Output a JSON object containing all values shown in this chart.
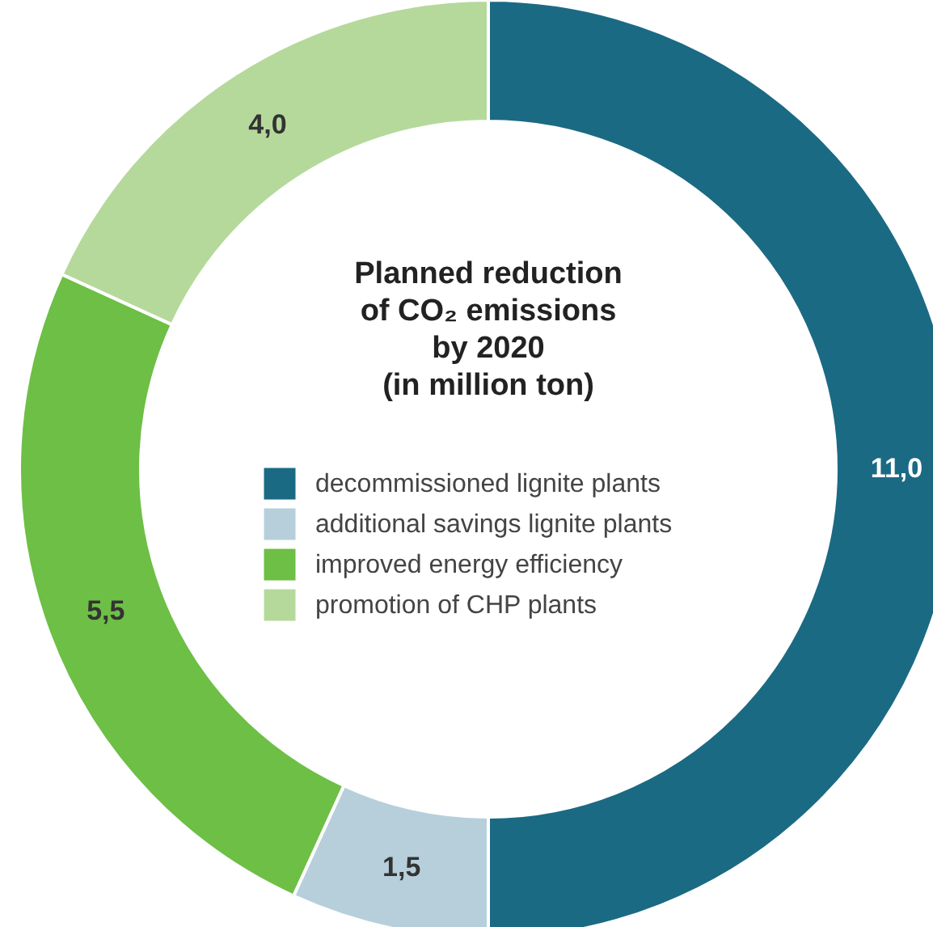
{
  "chart_data": {
    "type": "donut",
    "title": "Planned reduction\nof CO₂ emissions\nby 2020\n(in million ton)",
    "categories": [
      "decommissioned lignite plants",
      "additional savings lignite plants",
      "improved energy efficiency",
      "promotion of CHP plants"
    ],
    "values": [
      11,
      1.5,
      5.5,
      4
    ],
    "colors": [
      "#1b6a84",
      "#b6cfdb",
      "#6dbf45",
      "#b5d99b"
    ],
    "value_labels": [
      "11,0",
      "1,5",
      "5,5",
      "4,0"
    ],
    "legend": "center"
  }
}
